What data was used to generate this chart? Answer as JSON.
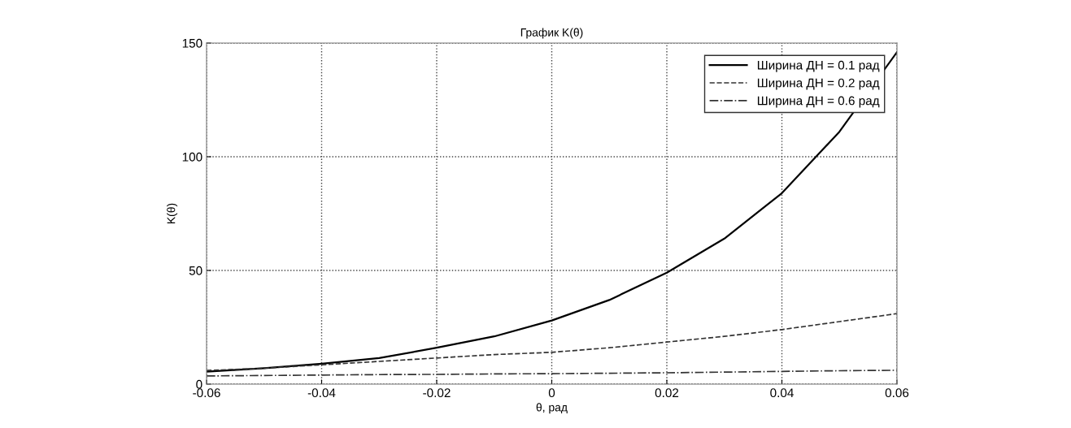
{
  "chart_data": {
    "type": "line",
    "title": "График K(θ)",
    "xlabel": "θ, рад",
    "ylabel": "K(θ)",
    "x": [
      -0.06,
      -0.05,
      -0.04,
      -0.03,
      -0.02,
      -0.01,
      0,
      0.01,
      0.02,
      0.03,
      0.04,
      0.05,
      0.06
    ],
    "series": [
      {
        "name": "Ширина ДН = 0.1 рад",
        "color": "#000000",
        "line_style": "solid",
        "values": [
          5.5,
          7,
          9,
          11.5,
          16,
          21,
          28,
          37,
          49,
          64,
          84,
          111,
          146
        ]
      },
      {
        "name": "Ширина ДН = 0.2 рад",
        "color": "#333333",
        "line_style": "dashed",
        "values": [
          6,
          7,
          8.5,
          10,
          11.5,
          13,
          14,
          16,
          18.5,
          21,
          24,
          27.5,
          31
        ]
      },
      {
        "name": "Ширина ДН = 0.6 рад",
        "color": "#333333",
        "line_style": "dashdot",
        "values": [
          3.6,
          3.8,
          4,
          4.2,
          4.3,
          4.5,
          4.6,
          4.8,
          5,
          5.3,
          5.6,
          5.9,
          6.1
        ]
      }
    ],
    "xlim": [
      -0.06,
      0.06
    ],
    "xticks": [
      -0.06,
      -0.04,
      -0.02,
      0,
      0.02,
      0.04,
      0.06
    ],
    "ylim": [
      0,
      150
    ],
    "yticks": [
      0,
      50,
      100,
      150
    ],
    "grid": true,
    "legend": "top right",
    "marker": "none"
  }
}
